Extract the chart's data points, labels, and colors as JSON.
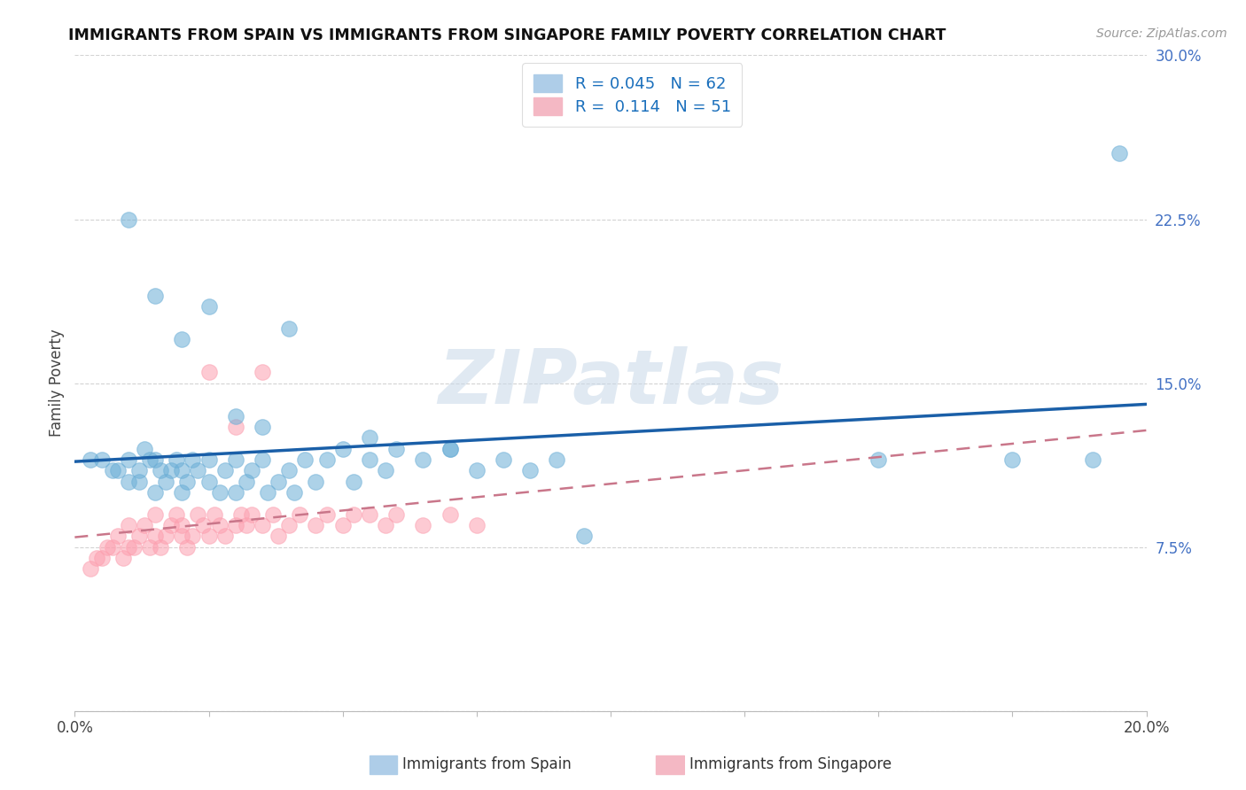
{
  "title": "IMMIGRANTS FROM SPAIN VS IMMIGRANTS FROM SINGAPORE FAMILY POVERTY CORRELATION CHART",
  "source": "Source: ZipAtlas.com",
  "ylabel": "Family Poverty",
  "xlim": [
    0.0,
    0.2
  ],
  "ylim": [
    0.0,
    0.3
  ],
  "xticks": [
    0.0,
    0.025,
    0.05,
    0.075,
    0.1,
    0.125,
    0.15,
    0.175,
    0.2
  ],
  "xticklabels_edge": {
    "0.0": "0.0%",
    "0.2": "20.0%"
  },
  "yticks": [
    0.0,
    0.075,
    0.15,
    0.225,
    0.3
  ],
  "yticklabels": [
    "",
    "7.5%",
    "15.0%",
    "22.5%",
    "30.0%"
  ],
  "spain_color": "#6baed6",
  "singapore_color": "#fc9faf",
  "spain_line_color": "#1a5fa8",
  "singapore_line_color": "#c9768a",
  "spain_R": 0.045,
  "spain_N": 62,
  "singapore_R": 0.114,
  "singapore_N": 51,
  "watermark": "ZIPatlas",
  "background_color": "#ffffff",
  "grid_color": "#c8c8c8",
  "spain_x": [
    0.003,
    0.005,
    0.007,
    0.008,
    0.01,
    0.01,
    0.012,
    0.012,
    0.013,
    0.014,
    0.015,
    0.015,
    0.016,
    0.017,
    0.018,
    0.019,
    0.02,
    0.02,
    0.021,
    0.022,
    0.023,
    0.025,
    0.025,
    0.027,
    0.028,
    0.03,
    0.03,
    0.032,
    0.033,
    0.035,
    0.036,
    0.038,
    0.04,
    0.041,
    0.043,
    0.045,
    0.047,
    0.05,
    0.052,
    0.055,
    0.058,
    0.06,
    0.065,
    0.07,
    0.075,
    0.08,
    0.085,
    0.09,
    0.095,
    0.01,
    0.015,
    0.02,
    0.025,
    0.03,
    0.035,
    0.04,
    0.055,
    0.07,
    0.15,
    0.175,
    0.19,
    0.195
  ],
  "spain_y": [
    0.115,
    0.115,
    0.11,
    0.11,
    0.115,
    0.105,
    0.11,
    0.105,
    0.12,
    0.115,
    0.1,
    0.115,
    0.11,
    0.105,
    0.11,
    0.115,
    0.1,
    0.11,
    0.105,
    0.115,
    0.11,
    0.115,
    0.105,
    0.1,
    0.11,
    0.1,
    0.115,
    0.105,
    0.11,
    0.115,
    0.1,
    0.105,
    0.11,
    0.1,
    0.115,
    0.105,
    0.115,
    0.12,
    0.105,
    0.115,
    0.11,
    0.12,
    0.115,
    0.12,
    0.11,
    0.115,
    0.11,
    0.115,
    0.08,
    0.225,
    0.19,
    0.17,
    0.185,
    0.135,
    0.13,
    0.175,
    0.125,
    0.12,
    0.115,
    0.115,
    0.115,
    0.255
  ],
  "singapore_x": [
    0.003,
    0.004,
    0.005,
    0.006,
    0.007,
    0.008,
    0.009,
    0.01,
    0.01,
    0.011,
    0.012,
    0.013,
    0.014,
    0.015,
    0.015,
    0.016,
    0.017,
    0.018,
    0.019,
    0.02,
    0.02,
    0.021,
    0.022,
    0.023,
    0.024,
    0.025,
    0.026,
    0.027,
    0.028,
    0.03,
    0.031,
    0.032,
    0.033,
    0.035,
    0.037,
    0.038,
    0.04,
    0.042,
    0.045,
    0.047,
    0.05,
    0.052,
    0.055,
    0.058,
    0.06,
    0.065,
    0.07,
    0.075,
    0.025,
    0.03,
    0.035
  ],
  "singapore_y": [
    0.065,
    0.07,
    0.07,
    0.075,
    0.075,
    0.08,
    0.07,
    0.075,
    0.085,
    0.075,
    0.08,
    0.085,
    0.075,
    0.08,
    0.09,
    0.075,
    0.08,
    0.085,
    0.09,
    0.08,
    0.085,
    0.075,
    0.08,
    0.09,
    0.085,
    0.08,
    0.09,
    0.085,
    0.08,
    0.085,
    0.09,
    0.085,
    0.09,
    0.085,
    0.09,
    0.08,
    0.085,
    0.09,
    0.085,
    0.09,
    0.085,
    0.09,
    0.09,
    0.085,
    0.09,
    0.085,
    0.09,
    0.085,
    0.155,
    0.13,
    0.155
  ]
}
